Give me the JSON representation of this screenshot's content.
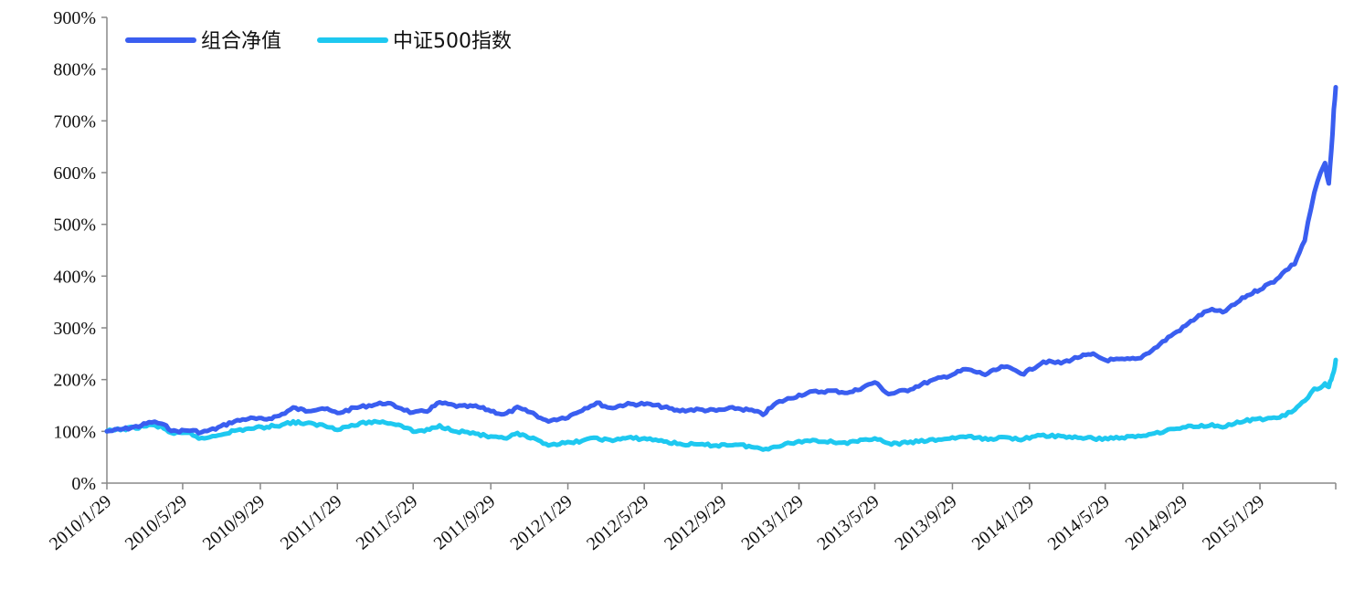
{
  "chart_data": {
    "type": "line",
    "title": "",
    "xlabel": "",
    "ylabel": "",
    "ylim": [
      0,
      900
    ],
    "y_tick_labels": [
      "0%",
      "100%",
      "200%",
      "300%",
      "400%",
      "500%",
      "600%",
      "700%",
      "800%",
      "900%"
    ],
    "y_tick_values": [
      0,
      100,
      200,
      300,
      400,
      500,
      600,
      700,
      800,
      900
    ],
    "x_tick_labels": [
      "2010/1/29",
      "2010/5/29",
      "2010/9/29",
      "2011/1/29",
      "2011/5/29",
      "2011/9/29",
      "2012/1/29",
      "2012/5/29",
      "2012/9/29",
      "2013/1/29",
      "2013/5/29",
      "2013/9/29",
      "2014/1/29",
      "2014/5/29",
      "2014/9/29",
      "2015/1/29"
    ],
    "x_start": "2010/1/29",
    "x_end": "2015/5/29",
    "grid": false,
    "legend_position": "top-left",
    "series": [
      {
        "name": "组合净值",
        "color": "#3a5ef0",
        "points": [
          [
            "2010/1/29",
            100
          ],
          [
            "2010/2/28",
            105
          ],
          [
            "2010/3/20",
            110
          ],
          [
            "2010/4/10",
            118
          ],
          [
            "2010/4/25",
            115
          ],
          [
            "2010/5/15",
            100
          ],
          [
            "2010/6/10",
            102
          ],
          [
            "2010/6/28",
            98
          ],
          [
            "2010/7/20",
            105
          ],
          [
            "2010/8/15",
            118
          ],
          [
            "2010/9/10",
            125
          ],
          [
            "2010/10/5",
            123
          ],
          [
            "2010/10/29",
            130
          ],
          [
            "2010/11/20",
            145
          ],
          [
            "2010/12/10",
            140
          ],
          [
            "2011/1/5",
            145
          ],
          [
            "2011/1/29",
            135
          ],
          [
            "2011/2/25",
            145
          ],
          [
            "2011/3/20",
            150
          ],
          [
            "2011/4/15",
            155
          ],
          [
            "2011/5/10",
            145
          ],
          [
            "2011/5/29",
            135
          ],
          [
            "2011/6/20",
            140
          ],
          [
            "2011/7/10",
            155
          ],
          [
            "2011/8/10",
            148
          ],
          [
            "2011/9/5",
            148
          ],
          [
            "2011/9/29",
            140
          ],
          [
            "2011/10/20",
            132
          ],
          [
            "2011/11/10",
            145
          ],
          [
            "2011/12/5",
            135
          ],
          [
            "2011/12/25",
            120
          ],
          [
            "2012/1/29",
            128
          ],
          [
            "2012/2/25",
            145
          ],
          [
            "2012/3/15",
            155
          ],
          [
            "2012/4/5",
            145
          ],
          [
            "2012/4/29",
            152
          ],
          [
            "2012/5/29",
            153
          ],
          [
            "2012/6/25",
            148
          ],
          [
            "2012/7/20",
            140
          ],
          [
            "2012/8/20",
            142
          ],
          [
            "2012/9/20",
            140
          ],
          [
            "2012/10/20",
            145
          ],
          [
            "2012/11/15",
            140
          ],
          [
            "2012/12/3",
            133
          ],
          [
            "2012/12/25",
            155
          ],
          [
            "2013/1/29",
            170
          ],
          [
            "2013/2/20",
            176
          ],
          [
            "2013/3/20",
            178
          ],
          [
            "2013/4/20",
            175
          ],
          [
            "2013/5/10",
            185
          ],
          [
            "2013/5/29",
            195
          ],
          [
            "2013/6/20",
            172
          ],
          [
            "2013/7/20",
            180
          ],
          [
            "2013/8/20",
            195
          ],
          [
            "2013/9/29",
            210
          ],
          [
            "2013/10/20",
            220
          ],
          [
            "2013/11/20",
            210
          ],
          [
            "2013/12/20",
            225
          ],
          [
            "2014/1/20",
            212
          ],
          [
            "2014/1/29",
            218
          ],
          [
            "2014/2/20",
            235
          ],
          [
            "2014/3/20",
            232
          ],
          [
            "2014/4/20",
            245
          ],
          [
            "2014/5/10",
            248
          ],
          [
            "2014/5/29",
            238
          ],
          [
            "2014/6/20",
            238
          ],
          [
            "2014/7/20",
            240
          ],
          [
            "2014/8/15",
            260
          ],
          [
            "2014/9/10",
            285
          ],
          [
            "2014/9/29",
            300
          ],
          [
            "2014/10/20",
            320
          ],
          [
            "2014/11/10",
            335
          ],
          [
            "2014/12/1",
            330
          ],
          [
            "2014/12/20",
            345
          ],
          [
            "2015/1/5",
            360
          ],
          [
            "2015/1/29",
            375
          ],
          [
            "2015/2/20",
            390
          ],
          [
            "2015/3/10",
            410
          ],
          [
            "2015/3/25",
            425
          ],
          [
            "2015/4/10",
            470
          ],
          [
            "2015/4/25",
            560
          ],
          [
            "2015/5/5",
            600
          ],
          [
            "2015/5/12",
            615
          ],
          [
            "2015/5/18",
            580
          ],
          [
            "2015/5/22",
            640
          ],
          [
            "2015/5/26",
            720
          ],
          [
            "2015/5/29",
            765
          ]
        ]
      },
      {
        "name": "中证500指数",
        "color": "#1ec8f0",
        "points": [
          [
            "2010/1/29",
            100
          ],
          [
            "2010/2/28",
            105
          ],
          [
            "2010/3/20",
            108
          ],
          [
            "2010/4/10",
            112
          ],
          [
            "2010/4/25",
            108
          ],
          [
            "2010/5/15",
            95
          ],
          [
            "2010/6/10",
            96
          ],
          [
            "2010/6/28",
            85
          ],
          [
            "2010/7/20",
            92
          ],
          [
            "2010/8/15",
            100
          ],
          [
            "2010/9/10",
            105
          ],
          [
            "2010/10/5",
            108
          ],
          [
            "2010/10/29",
            112
          ],
          [
            "2010/11/20",
            118
          ],
          [
            "2010/12/10",
            115
          ],
          [
            "2011/1/5",
            112
          ],
          [
            "2011/1/29",
            105
          ],
          [
            "2011/2/25",
            112
          ],
          [
            "2011/3/20",
            118
          ],
          [
            "2011/4/15",
            118
          ],
          [
            "2011/5/10",
            112
          ],
          [
            "2011/5/29",
            100
          ],
          [
            "2011/6/20",
            102
          ],
          [
            "2011/7/10",
            110
          ],
          [
            "2011/8/10",
            100
          ],
          [
            "2011/9/5",
            96
          ],
          [
            "2011/9/29",
            88
          ],
          [
            "2011/10/20",
            86
          ],
          [
            "2011/11/10",
            95
          ],
          [
            "2011/12/5",
            85
          ],
          [
            "2011/12/25",
            75
          ],
          [
            "2012/1/29",
            77
          ],
          [
            "2012/2/25",
            83
          ],
          [
            "2012/3/15",
            87
          ],
          [
            "2012/4/5",
            82
          ],
          [
            "2012/4/29",
            87
          ],
          [
            "2012/5/29",
            86
          ],
          [
            "2012/6/25",
            82
          ],
          [
            "2012/7/20",
            76
          ],
          [
            "2012/8/20",
            74
          ],
          [
            "2012/9/20",
            73
          ],
          [
            "2012/10/20",
            75
          ],
          [
            "2012/11/15",
            70
          ],
          [
            "2012/12/3",
            65
          ],
          [
            "2012/12/25",
            72
          ],
          [
            "2013/1/29",
            80
          ],
          [
            "2013/2/20",
            83
          ],
          [
            "2013/3/20",
            80
          ],
          [
            "2013/4/20",
            78
          ],
          [
            "2013/5/10",
            82
          ],
          [
            "2013/5/29",
            88
          ],
          [
            "2013/6/20",
            75
          ],
          [
            "2013/7/20",
            78
          ],
          [
            "2013/8/20",
            82
          ],
          [
            "2013/9/29",
            87
          ],
          [
            "2013/10/20",
            90
          ],
          [
            "2013/11/20",
            85
          ],
          [
            "2013/12/20",
            88
          ],
          [
            "2014/1/20",
            85
          ],
          [
            "2014/1/29",
            88
          ],
          [
            "2014/2/20",
            92
          ],
          [
            "2014/3/20",
            90
          ],
          [
            "2014/4/20",
            88
          ],
          [
            "2014/5/10",
            86
          ],
          [
            "2014/5/29",
            86
          ],
          [
            "2014/6/20",
            88
          ],
          [
            "2014/7/20",
            90
          ],
          [
            "2014/8/15",
            97
          ],
          [
            "2014/9/10",
            103
          ],
          [
            "2014/9/29",
            108
          ],
          [
            "2014/10/20",
            110
          ],
          [
            "2014/11/10",
            112
          ],
          [
            "2014/12/1",
            110
          ],
          [
            "2014/12/20",
            115
          ],
          [
            "2015/1/5",
            120
          ],
          [
            "2015/1/29",
            124
          ],
          [
            "2015/2/20",
            125
          ],
          [
            "2015/3/10",
            132
          ],
          [
            "2015/3/25",
            140
          ],
          [
            "2015/4/10",
            160
          ],
          [
            "2015/4/25",
            180
          ],
          [
            "2015/5/5",
            185
          ],
          [
            "2015/5/12",
            192
          ],
          [
            "2015/5/18",
            188
          ],
          [
            "2015/5/22",
            200
          ],
          [
            "2015/5/26",
            215
          ],
          [
            "2015/5/29",
            238
          ]
        ]
      }
    ]
  }
}
